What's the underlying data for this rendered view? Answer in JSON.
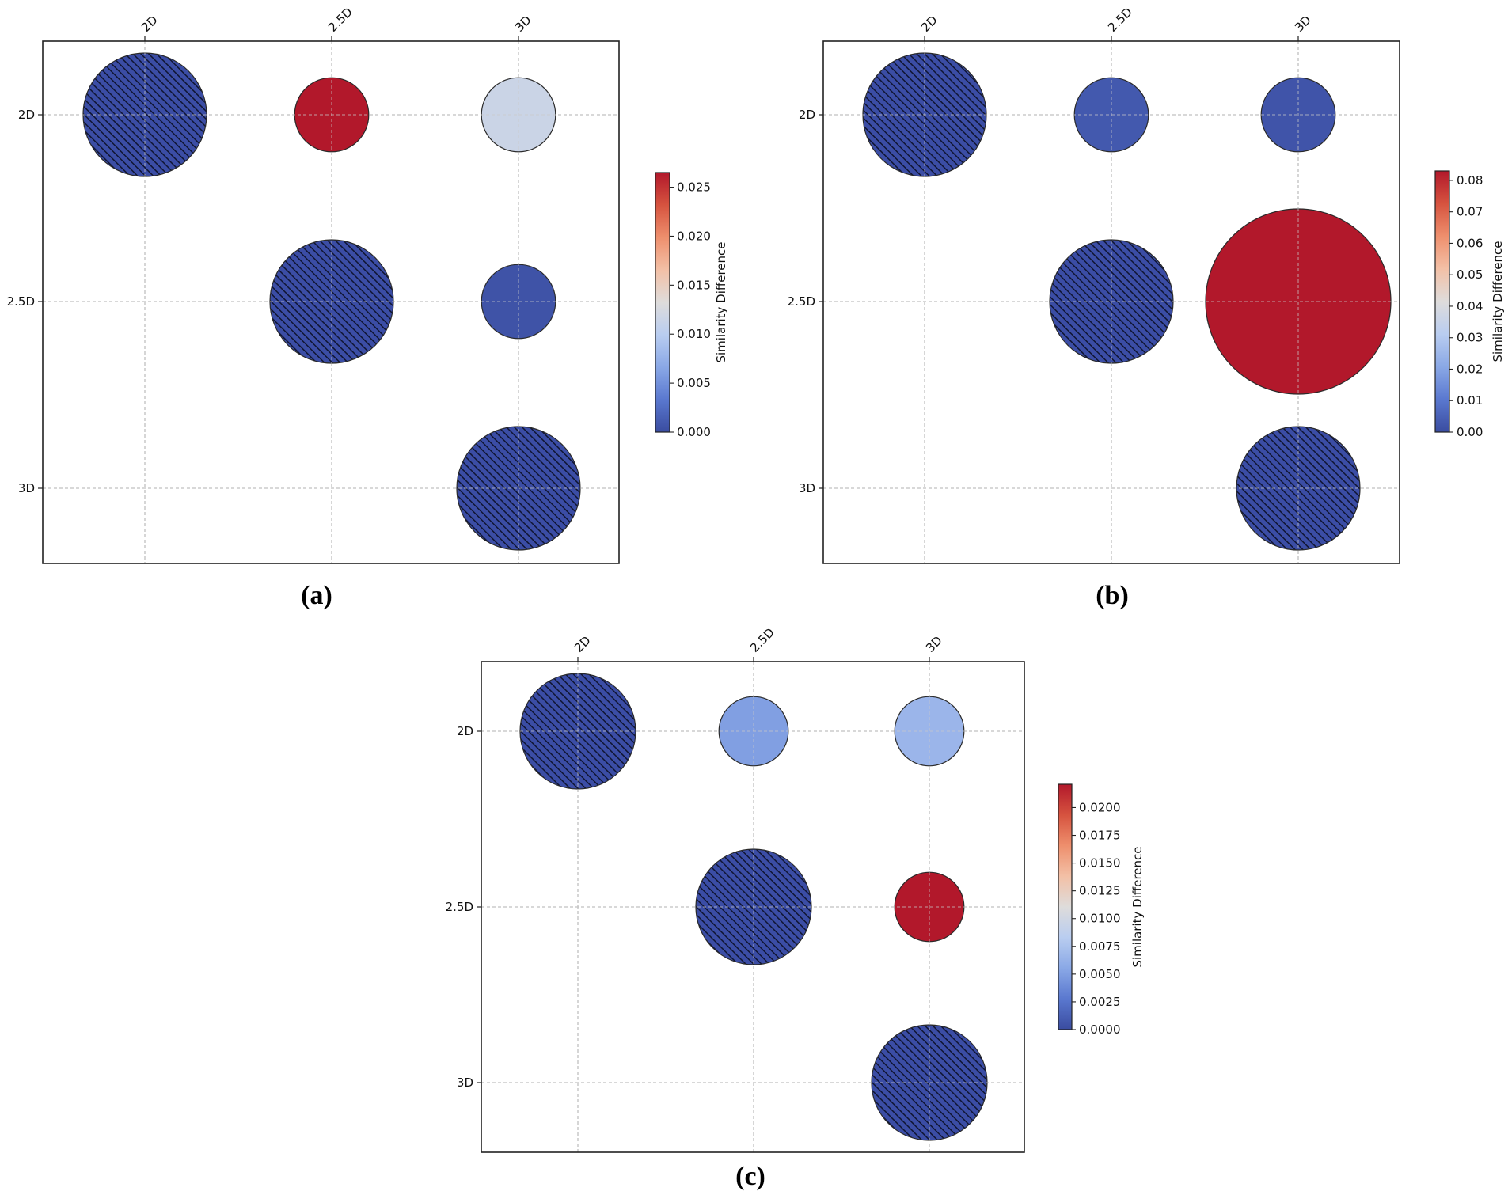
{
  "figure": {
    "description_labels": [
      "(a)",
      "(b)",
      "(c)"
    ]
  },
  "chart_data": [
    {
      "type": "scatter",
      "subtype": "bubble-matrix",
      "panel_label": "(a)",
      "x_categories": [
        "2D",
        "2.5D",
        "3D"
      ],
      "y_categories": [
        "2D",
        "2.5D",
        "3D"
      ],
      "colorbar": {
        "label": "Similarity Difference",
        "min": 0.0,
        "max": 0.0265,
        "ticks": [
          0.0,
          0.005,
          0.01,
          0.015,
          0.02,
          0.025
        ],
        "tick_labels": [
          "0.000",
          "0.005",
          "0.010",
          "0.015",
          "0.020",
          "0.025"
        ]
      },
      "cells": [
        {
          "x": "2D",
          "y": "2D",
          "size": 1.0,
          "value": 0.0,
          "diagonal": true
        },
        {
          "x": "2.5D",
          "y": "2D",
          "size": 0.6,
          "value": 0.0265,
          "diagonal": false
        },
        {
          "x": "3D",
          "y": "2D",
          "size": 0.6,
          "value": 0.0115,
          "diagonal": false
        },
        {
          "x": "2.5D",
          "y": "2.5D",
          "size": 1.0,
          "value": 0.0,
          "diagonal": true
        },
        {
          "x": "3D",
          "y": "2.5D",
          "size": 0.6,
          "value": 0.0005,
          "diagonal": false
        },
        {
          "x": "3D",
          "y": "3D",
          "size": 1.0,
          "value": 0.0,
          "diagonal": true
        }
      ],
      "grid": true
    },
    {
      "type": "scatter",
      "subtype": "bubble-matrix",
      "panel_label": "(b)",
      "x_categories": [
        "2D",
        "2.5D",
        "3D"
      ],
      "y_categories": [
        "2D",
        "2.5D",
        "3D"
      ],
      "colorbar": {
        "label": "Similarity Difference",
        "min": 0.0,
        "max": 0.083,
        "ticks": [
          0.0,
          0.01,
          0.02,
          0.03,
          0.04,
          0.05,
          0.06,
          0.07,
          0.08
        ],
        "tick_labels": [
          "0.00",
          "0.01",
          "0.02",
          "0.03",
          "0.04",
          "0.05",
          "0.06",
          "0.07",
          "0.08"
        ]
      },
      "cells": [
        {
          "x": "2D",
          "y": "2D",
          "size": 1.0,
          "value": 0.0,
          "diagonal": true
        },
        {
          "x": "2.5D",
          "y": "2D",
          "size": 0.6,
          "value": 0.003,
          "diagonal": false
        },
        {
          "x": "3D",
          "y": "2D",
          "size": 0.6,
          "value": 0.002,
          "diagonal": false
        },
        {
          "x": "2.5D",
          "y": "2.5D",
          "size": 1.0,
          "value": 0.0,
          "diagonal": true
        },
        {
          "x": "3D",
          "y": "2.5D",
          "size": 1.5,
          "value": 0.083,
          "diagonal": false
        },
        {
          "x": "3D",
          "y": "3D",
          "size": 1.0,
          "value": 0.0,
          "diagonal": true
        }
      ],
      "grid": true
    },
    {
      "type": "scatter",
      "subtype": "bubble-matrix",
      "panel_label": "(c)",
      "x_categories": [
        "2D",
        "2.5D",
        "3D"
      ],
      "y_categories": [
        "2D",
        "2.5D",
        "3D"
      ],
      "colorbar": {
        "label": "Similarity Difference",
        "min": 0.0,
        "max": 0.0221,
        "ticks": [
          0.0,
          0.0025,
          0.005,
          0.0075,
          0.01,
          0.0125,
          0.015,
          0.0175,
          0.02
        ],
        "tick_labels": [
          "0.0000",
          "0.0025",
          "0.0050",
          "0.0075",
          "0.0100",
          "0.0125",
          "0.0150",
          "0.0175",
          "0.0200"
        ]
      },
      "cells": [
        {
          "x": "2D",
          "y": "2D",
          "size": 1.0,
          "value": 0.0,
          "diagonal": true
        },
        {
          "x": "2.5D",
          "y": "2D",
          "size": 0.6,
          "value": 0.005,
          "diagonal": false
        },
        {
          "x": "3D",
          "y": "2D",
          "size": 0.6,
          "value": 0.0065,
          "diagonal": false
        },
        {
          "x": "2.5D",
          "y": "2.5D",
          "size": 1.0,
          "value": 0.0,
          "diagonal": true
        },
        {
          "x": "3D",
          "y": "2.5D",
          "size": 0.6,
          "value": 0.0221,
          "diagonal": false
        },
        {
          "x": "3D",
          "y": "3D",
          "size": 1.0,
          "value": 0.0,
          "diagonal": true
        }
      ],
      "grid": true
    }
  ]
}
